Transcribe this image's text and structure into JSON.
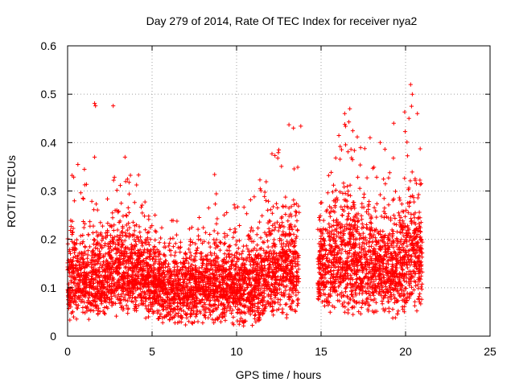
{
  "chart_data": {
    "type": "scatter",
    "title": "Day 279 of 2014, Rate Of TEC Index for receiver nya2",
    "xlabel": "GPS time / hours",
    "ylabel": "ROTI / TECUs",
    "xlim": [
      0,
      25
    ],
    "ylim": [
      0,
      0.6
    ],
    "xticks": [
      0,
      5,
      10,
      15,
      20,
      25
    ],
    "xtick_labels": [
      "0",
      "5",
      "10",
      "15",
      "20",
      "25"
    ],
    "yticks": [
      0,
      0.1,
      0.2,
      0.3,
      0.4,
      0.5,
      0.6
    ],
    "ytick_labels": [
      "0",
      "0.1",
      "0.2",
      "0.3",
      "0.4",
      "0.5",
      "0.6"
    ],
    "grid": true,
    "marker": "+",
    "series": [
      {
        "name": "ROTI",
        "color": "#ff0000",
        "coverage": [
          [
            0.0,
            13.7
          ],
          [
            14.8,
            21.0
          ]
        ],
        "envelope": [
          {
            "t": 0.0,
            "base": 0.03,
            "typ": 0.2,
            "peak": 0.37
          },
          {
            "t": 1.0,
            "base": 0.03,
            "typ": 0.22,
            "peak": 0.35
          },
          {
            "t": 2.0,
            "base": 0.03,
            "typ": 0.2,
            "peak": 0.3
          },
          {
            "t": 3.0,
            "base": 0.04,
            "typ": 0.26,
            "peak": 0.35
          },
          {
            "t": 4.0,
            "base": 0.04,
            "typ": 0.22,
            "peak": 0.33
          },
          {
            "t": 5.0,
            "base": 0.03,
            "typ": 0.2,
            "peak": 0.26
          },
          {
            "t": 6.0,
            "base": 0.02,
            "typ": 0.18,
            "peak": 0.25
          },
          {
            "t": 7.0,
            "base": 0.02,
            "typ": 0.18,
            "peak": 0.24
          },
          {
            "t": 8.0,
            "base": 0.02,
            "typ": 0.19,
            "peak": 0.25
          },
          {
            "t": 9.0,
            "base": 0.02,
            "typ": 0.2,
            "peak": 0.31
          },
          {
            "t": 10.0,
            "base": 0.02,
            "typ": 0.2,
            "peak": 0.29
          },
          {
            "t": 11.0,
            "base": 0.01,
            "typ": 0.2,
            "peak": 0.29
          },
          {
            "t": 12.0,
            "base": 0.03,
            "typ": 0.24,
            "peak": 0.38
          },
          {
            "t": 13.0,
            "base": 0.03,
            "typ": 0.27,
            "peak": 0.44
          },
          {
            "t": 13.7,
            "base": 0.04,
            "typ": 0.26,
            "peak": 0.43
          },
          {
            "t": 14.8,
            "base": 0.04,
            "typ": 0.22,
            "peak": 0.3
          },
          {
            "t": 15.5,
            "base": 0.04,
            "typ": 0.28,
            "peak": 0.38
          },
          {
            "t": 16.5,
            "base": 0.04,
            "typ": 0.3,
            "peak": 0.47
          },
          {
            "t": 17.5,
            "base": 0.04,
            "typ": 0.27,
            "peak": 0.41
          },
          {
            "t": 18.5,
            "base": 0.04,
            "typ": 0.25,
            "peak": 0.38
          },
          {
            "t": 19.5,
            "base": 0.03,
            "typ": 0.27,
            "peak": 0.42
          },
          {
            "t": 20.5,
            "base": 0.04,
            "typ": 0.32,
            "peak": 0.52
          },
          {
            "t": 21.0,
            "base": 0.05,
            "typ": 0.3,
            "peak": 0.46
          }
        ],
        "outliers": [
          [
            1.6,
            0.481
          ],
          [
            1.65,
            0.476
          ],
          [
            2.7,
            0.476
          ],
          [
            1.6,
            0.37
          ],
          [
            13.1,
            0.437
          ],
          [
            13.8,
            0.434
          ],
          [
            16.7,
            0.47
          ],
          [
            16.4,
            0.46
          ],
          [
            19.3,
            0.44
          ],
          [
            20.3,
            0.52
          ],
          [
            20.4,
            0.5
          ],
          [
            20.2,
            0.45
          ],
          [
            20.7,
            0.46
          ],
          [
            8.7,
            0.334
          ],
          [
            12.5,
            0.385
          ],
          [
            4.2,
            0.333
          ],
          [
            3.4,
            0.37
          ],
          [
            17.9,
            0.41
          ],
          [
            18.5,
            0.4
          ]
        ]
      }
    ]
  }
}
